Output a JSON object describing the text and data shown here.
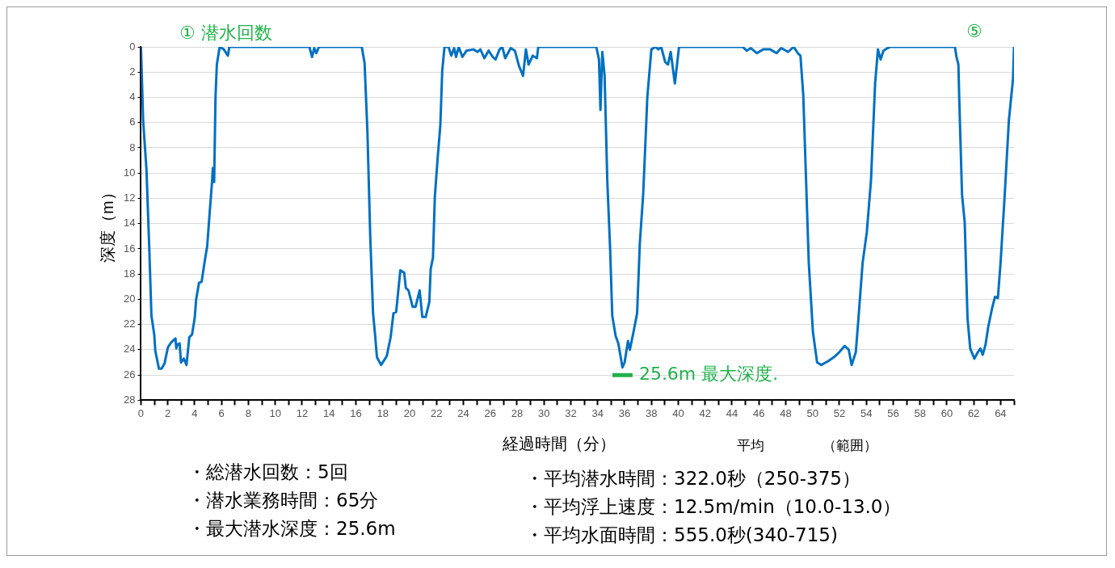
{
  "chart_data": {
    "type": "line",
    "xlabel": "経過時間（分）",
    "ylabel": "深度（m）",
    "x": [
      0,
      0.16,
      0.41,
      0.62,
      0.78,
      0.99,
      1.07,
      1.34,
      1.54,
      1.75,
      2.01,
      2.26,
      2.57,
      2.63,
      2.7,
      2.88,
      2.98,
      3.19,
      3.39,
      3.6,
      3.8,
      4.0,
      4.11,
      4.32,
      4.52,
      4.73,
      4.93,
      5.14,
      5.3,
      5.35,
      5.45,
      5.55,
      5.65,
      5.86,
      6.17,
      6.47,
      6.58,
      12.54,
      12.74,
      12.9,
      13.05,
      13.25,
      16.44,
      16.65,
      16.86,
      17.07,
      17.28,
      17.43,
      17.57,
      17.88,
      18.3,
      18.59,
      18.8,
      19.0,
      19.31,
      19.6,
      19.72,
      19.92,
      20.23,
      20.44,
      20.75,
      20.95,
      21.2,
      21.47,
      21.57,
      21.74,
      21.88,
      22.09,
      22.29,
      22.43,
      22.6,
      22.9,
      23.1,
      23.32,
      23.46,
      23.66,
      23.93,
      24.24,
      24.75,
      25.06,
      25.27,
      25.57,
      25.88,
      26.19,
      26.4,
      26.7,
      26.9,
      27.12,
      27.53,
      27.84,
      28.14,
      28.45,
      28.66,
      28.86,
      29.17,
      29.48,
      29.58,
      33.9,
      34.1,
      34.21,
      34.35,
      34.52,
      34.72,
      34.93,
      35.09,
      35.34,
      35.54,
      35.85,
      36.01,
      36.26,
      36.4,
      36.67,
      36.94,
      37.14,
      37.39,
      37.49,
      37.7,
      38.0,
      38.31,
      38.52,
      38.73,
      39.03,
      39.24,
      39.44,
      39.75,
      40.06,
      44.79,
      45.1,
      45.41,
      45.86,
      46.33,
      46.85,
      47.32,
      47.67,
      48.18,
      48.6,
      48.9,
      49.1,
      49.31,
      49.52,
      49.72,
      50.03,
      50.34,
      50.65,
      51.16,
      51.57,
      51.98,
      52.39,
      52.7,
      52.91,
      53.22,
      53.42,
      53.73,
      54.04,
      54.35,
      54.66,
      54.87,
      55.07,
      55.28,
      55.59,
      55.79,
      60.6,
      60.72,
      60.86,
      60.92,
      61.13,
      61.33,
      61.54,
      61.74,
      62.05,
      62.3,
      62.5,
      62.67,
      62.88,
      63.08,
      63.39,
      63.59,
      63.8,
      64.0,
      64.31,
      64.62,
      64.93,
      65.0
    ],
    "series": [
      {
        "color": "#0070c0",
        "values": [
          0,
          5.8,
          9.7,
          16,
          21.3,
          22.8,
          24.1,
          25.5,
          25.5,
          25.1,
          23.8,
          23.4,
          23.1,
          23.9,
          23.6,
          23.5,
          25.0,
          24.7,
          25.2,
          23.0,
          22.8,
          21.5,
          20.0,
          18.7,
          18.6,
          17.1,
          15.8,
          12.8,
          10.6,
          9.6,
          10.7,
          4.0,
          1.4,
          0,
          0.2,
          0.7,
          0,
          0,
          0.8,
          0.1,
          0.5,
          0,
          0,
          1.3,
          6.7,
          15.0,
          21.1,
          22.8,
          24.6,
          25.2,
          24.5,
          23.0,
          21.1,
          21.0,
          17.7,
          17.9,
          19.1,
          19.3,
          20.6,
          20.6,
          19.3,
          21.4,
          21.4,
          20.2,
          17.6,
          16.7,
          11.9,
          8.8,
          6.2,
          1.9,
          0,
          0,
          0.7,
          0.1,
          0.8,
          0,
          0.8,
          0.3,
          0.2,
          0.4,
          0.2,
          0.9,
          0.3,
          0.8,
          1.0,
          0.2,
          0,
          0.9,
          0.1,
          0.3,
          1.5,
          2.3,
          0.2,
          1.4,
          0.7,
          0.9,
          0,
          0,
          1.0,
          5.0,
          0.4,
          2.3,
          10.6,
          16.0,
          21.3,
          22.9,
          23.5,
          25.4,
          25.0,
          23.3,
          24.0,
          22.6,
          21.1,
          15.6,
          11.7,
          9.3,
          4.0,
          0.2,
          0,
          0.2,
          0,
          1.2,
          1.4,
          0.4,
          2.9,
          0,
          0,
          0.3,
          0.1,
          0.5,
          0.2,
          0.2,
          0.5,
          0.1,
          0.4,
          0,
          0.5,
          0.7,
          3.8,
          10.6,
          17.1,
          22.6,
          25.0,
          25.2,
          24.9,
          24.6,
          24.2,
          23.7,
          24.0,
          25.2,
          24.2,
          21.5,
          17.1,
          14.7,
          10.6,
          2.9,
          0.2,
          1.0,
          0.3,
          0.1,
          0,
          0,
          0.8,
          1.4,
          4.0,
          11.7,
          13.9,
          21.5,
          23.9,
          24.7,
          24.2,
          23.9,
          24.4,
          23.6,
          22.2,
          20.6,
          19.8,
          19.9,
          17.1,
          11.7,
          5.8,
          2.5,
          0
        ]
      },
      {
        "type": "line",
        "color": "#22b14c",
        "x": [
          35.1,
          36.6
        ],
        "values": [
          26,
          26
        ]
      }
    ],
    "xlim": [
      0,
      65
    ],
    "xticks": [
      0,
      {
        "value": 1,
        "label": null
      },
      2,
      {
        "value": 3,
        "label": null
      },
      4,
      {
        "value": 5,
        "label": null
      },
      6,
      {
        "value": 7,
        "label": null
      },
      8,
      {
        "value": 9,
        "label": null
      },
      10,
      {
        "value": 11,
        "label": null
      },
      12,
      {
        "value": 13,
        "label": null
      },
      14,
      {
        "value": 15,
        "label": null
      },
      16,
      {
        "value": 17,
        "label": null
      },
      18,
      {
        "value": 19,
        "label": null
      },
      20,
      {
        "value": 21,
        "label": null
      },
      22,
      {
        "value": 23,
        "label": null
      },
      24,
      {
        "value": 25,
        "label": null
      },
      26,
      {
        "value": 27,
        "label": null
      },
      28,
      {
        "value": 29,
        "label": null
      },
      30,
      {
        "value": 31,
        "label": null
      },
      32,
      {
        "value": 33,
        "label": null
      },
      34,
      {
        "value": 35,
        "label": null
      },
      36,
      {
        "value": 37,
        "label": null
      },
      38,
      {
        "value": 39,
        "label": null
      },
      40,
      {
        "value": 41,
        "label": null
      },
      42,
      {
        "value": 43,
        "label": null
      },
      44,
      {
        "value": 45,
        "label": null
      },
      46,
      {
        "value": 47,
        "label": null
      },
      48,
      {
        "value": 49,
        "label": null
      },
      50,
      {
        "value": 51,
        "label": null
      },
      52,
      {
        "value": 53,
        "label": null
      },
      54,
      {
        "value": 55,
        "label": null
      },
      56,
      {
        "value": 57,
        "label": null
      },
      58,
      {
        "value": 59,
        "label": null
      },
      60,
      {
        "value": 61,
        "label": null
      },
      62,
      {
        "value": 63,
        "label": null
      },
      64,
      {
        "value": 65,
        "label": null
      }
    ],
    "ylim": [
      28,
      0
    ],
    "yticks": [
      0,
      2,
      4,
      6,
      8,
      10,
      12,
      14,
      16,
      18,
      20,
      22,
      24,
      26,
      28
    ],
    "grid": "y",
    "legend": false,
    "marker": "none",
    "line_style": "solid",
    "annotations": [
      "① 潜水回数",
      "⑤",
      {
        "text": "25.6m 最大深度.",
        "x": 36.6,
        "y": 26
      },
      "平均",
      "（範囲）",
      "・総潜水回数：5回",
      "・潜水業務時間：65分",
      "・最大潜水深度：25.6m",
      "・平均潜水時間：322.0秒（250-375）",
      "・平均浮上速度：12.5m/min（10.0-13.0）",
      "・平均水面時間：555.0秒(340-715)"
    ]
  }
}
